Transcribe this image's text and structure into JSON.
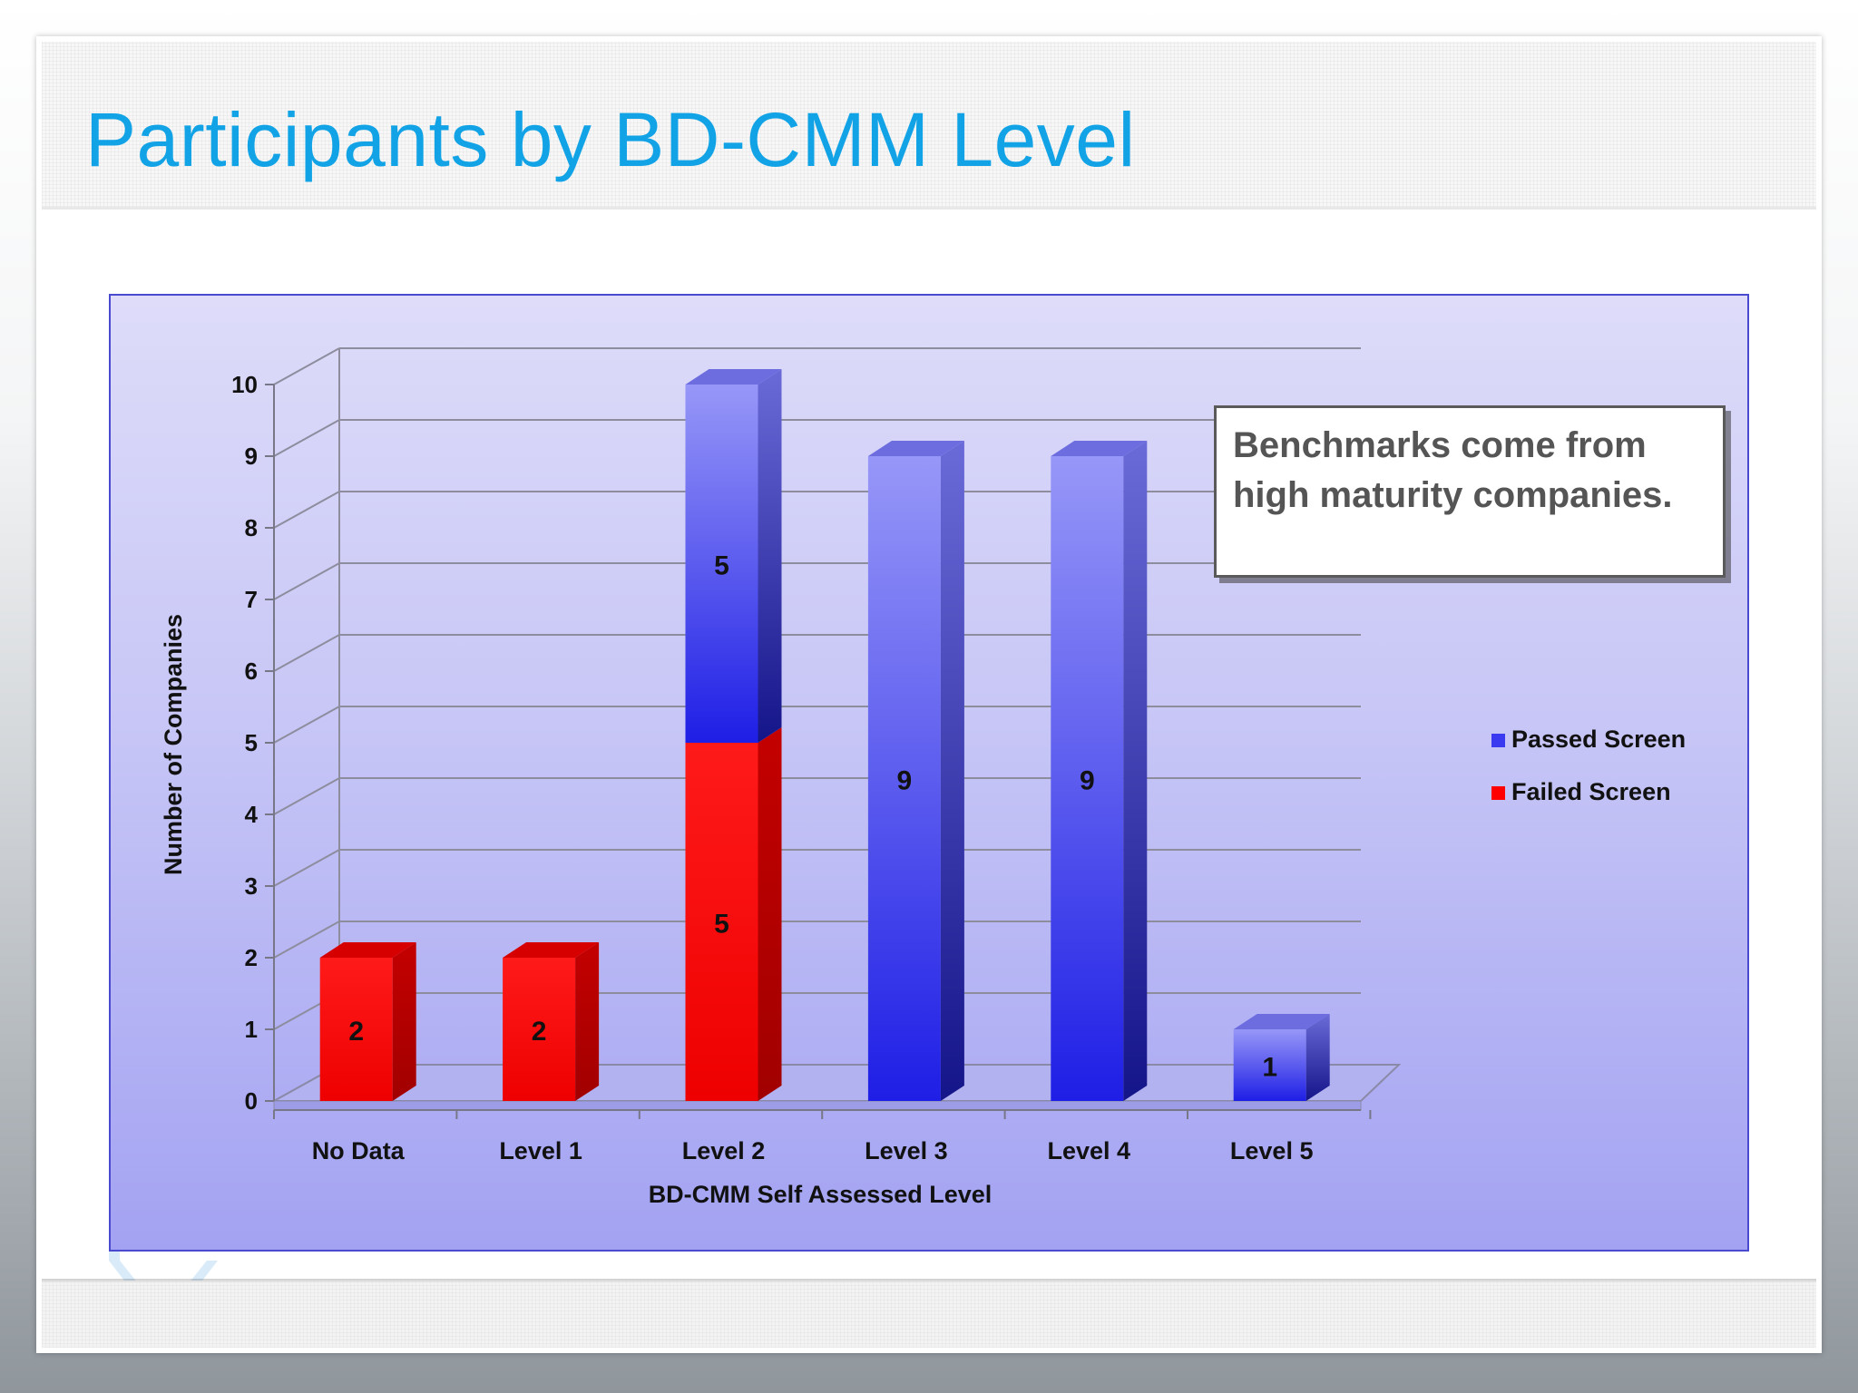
{
  "slide": {
    "title": "Participants by BD-CMM Level",
    "callout": "Benchmarks come from high maturity companies."
  },
  "chart_data": {
    "type": "bar",
    "stacked": true,
    "style": "3d",
    "categories": [
      "No Data",
      "Level 1",
      "Level 2",
      "Level 3",
      "Level 4",
      "Level 5"
    ],
    "series": [
      {
        "name": "Failed Screen",
        "values": [
          2,
          2,
          5,
          0,
          0,
          0
        ],
        "color": "#ff0000"
      },
      {
        "name": "Passed Screen",
        "values": [
          0,
          0,
          5,
          9,
          9,
          1
        ],
        "color": "#3a3af0"
      }
    ],
    "title": "",
    "xlabel": "BD-CMM Self Assessed Level",
    "ylabel": "Number of Companies",
    "ylim": [
      0,
      10
    ],
    "yticks": [
      0,
      1,
      2,
      3,
      4,
      5,
      6,
      7,
      8,
      9,
      10
    ],
    "grid": true,
    "legend": "right"
  }
}
